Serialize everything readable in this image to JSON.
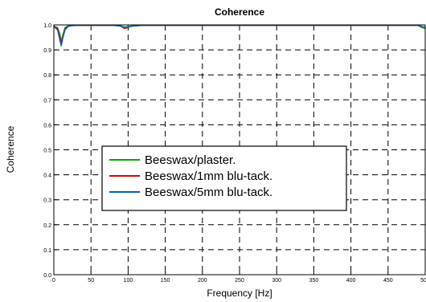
{
  "chart_data": {
    "type": "line",
    "title": "Coherence",
    "xlabel": "Frequency [Hz]",
    "ylabel": "Coherence",
    "xlim": [
      0,
      500
    ],
    "ylim": [
      0,
      1
    ],
    "x_ticks": [
      "0",
      "50",
      "100",
      "150",
      "200",
      "250",
      "300",
      "350",
      "400",
      "450",
      "500"
    ],
    "y_ticks": [
      "0.0",
      "0.1",
      "0.2",
      "0.3",
      "0.4",
      "0.5",
      "0.6",
      "0.7",
      "0.8",
      "0.9",
      "1.0"
    ],
    "grid": true,
    "legend_position": "center-left",
    "series": [
      {
        "name": "Beeswax/plaster.",
        "color": "#00aa00",
        "x": [
          0,
          5,
          8,
          10,
          12,
          15,
          20,
          30,
          50,
          80,
          90,
          95,
          100,
          105,
          120,
          200,
          300,
          400,
          490,
          495,
          500
        ],
        "y": [
          0.995,
          0.99,
          0.965,
          0.935,
          0.96,
          0.99,
          0.997,
          0.998,
          0.998,
          0.998,
          0.996,
          0.992,
          0.993,
          0.996,
          0.998,
          0.998,
          0.998,
          0.998,
          0.998,
          0.99,
          0.985
        ]
      },
      {
        "name": "Beeswax/1mm blu-tack.",
        "color": "#e00000",
        "x": [
          0,
          5,
          8,
          10,
          12,
          15,
          20,
          30,
          50,
          80,
          90,
          95,
          100,
          105,
          120,
          200,
          300,
          400,
          490,
          495,
          500
        ],
        "y": [
          0.995,
          0.985,
          0.955,
          0.93,
          0.95,
          0.985,
          0.996,
          0.998,
          0.998,
          0.998,
          0.995,
          0.985,
          0.99,
          0.995,
          0.998,
          0.998,
          0.998,
          0.998,
          0.998,
          0.995,
          0.99
        ]
      },
      {
        "name": "Beeswax/5mm blu-tack.",
        "color": "#0060c0",
        "x": [
          0,
          5,
          8,
          10,
          12,
          15,
          20,
          30,
          50,
          80,
          90,
          95,
          100,
          105,
          120,
          200,
          300,
          400,
          490,
          495,
          500
        ],
        "y": [
          0.993,
          0.98,
          0.94,
          0.915,
          0.945,
          0.98,
          0.995,
          0.998,
          0.998,
          0.998,
          0.995,
          0.99,
          0.992,
          0.995,
          0.998,
          0.998,
          0.998,
          0.998,
          0.998,
          0.994,
          0.99
        ]
      }
    ]
  }
}
